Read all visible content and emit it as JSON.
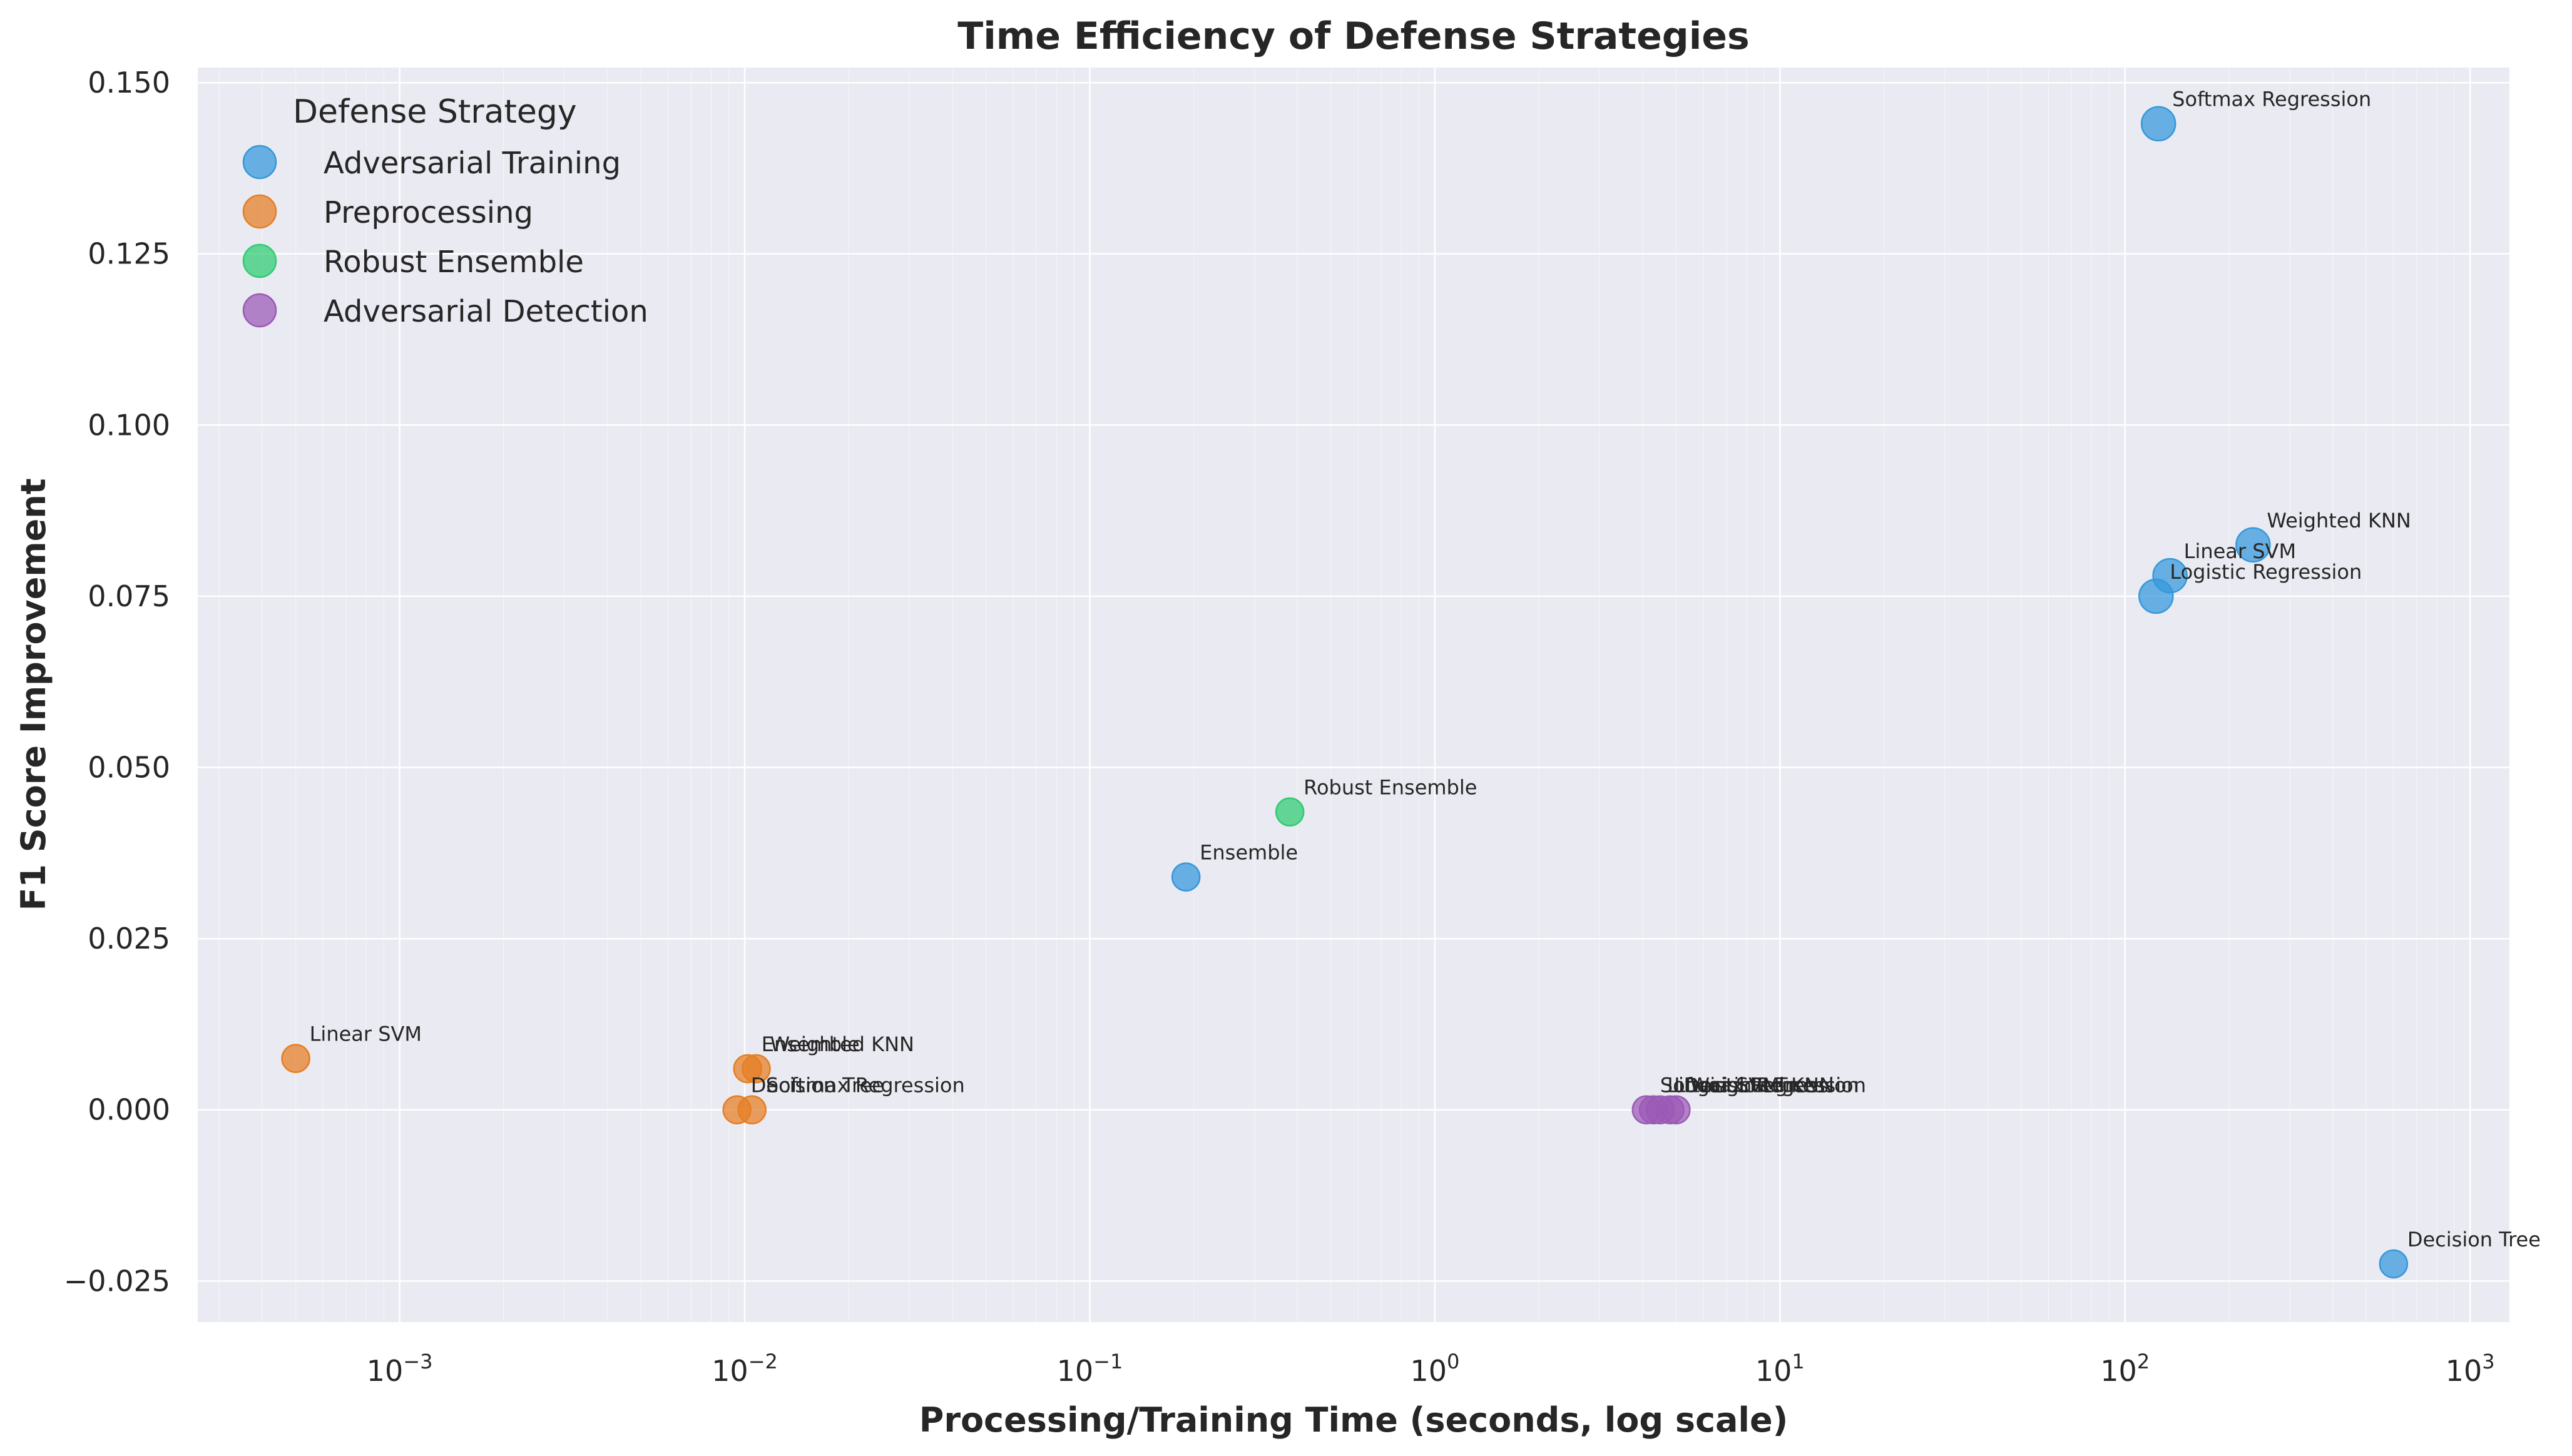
{
  "chart_data": {
    "type": "scatter",
    "title": "Time Efficiency of Defense Strategies",
    "xlabel": "Processing/Training Time (seconds, log scale)",
    "ylabel": "F1 Score Improvement",
    "x_scale": "log",
    "xlim": [
      0.00026,
      1300
    ],
    "ylim": [
      -0.031,
      0.1522
    ],
    "x_ticks": [
      {
        "value": 0.001,
        "base": "10",
        "exp": "−3"
      },
      {
        "value": 0.01,
        "base": "10",
        "exp": "−2"
      },
      {
        "value": 0.1,
        "base": "10",
        "exp": "−1"
      },
      {
        "value": 1,
        "base": "10",
        "exp": "0"
      },
      {
        "value": 10,
        "base": "10",
        "exp": "1"
      },
      {
        "value": 100,
        "base": "10",
        "exp": "2"
      },
      {
        "value": 1000,
        "base": "10",
        "exp": "3"
      }
    ],
    "y_ticks": [
      {
        "value": -0.025,
        "label": "−0.025"
      },
      {
        "value": 0.0,
        "label": "0.000"
      },
      {
        "value": 0.025,
        "label": "0.025"
      },
      {
        "value": 0.05,
        "label": "0.050"
      },
      {
        "value": 0.075,
        "label": "0.075"
      },
      {
        "value": 0.1,
        "label": "0.100"
      },
      {
        "value": 0.125,
        "label": "0.125"
      },
      {
        "value": 0.15,
        "label": "0.150"
      }
    ],
    "grid": true,
    "legend": {
      "title": "Defense Strategy",
      "placement": "top-left"
    },
    "series": [
      {
        "name": "Adversarial Training",
        "color": "#3498db",
        "points": [
          {
            "x": 125,
            "y": 0.144,
            "label": "Softmax Regression"
          },
          {
            "x": 235,
            "y": 0.0825,
            "label": "Weighted KNN"
          },
          {
            "x": 135,
            "y": 0.078,
            "label": "Linear SVM"
          },
          {
            "x": 123,
            "y": 0.075,
            "label": "Logistic Regression"
          },
          {
            "x": 0.19,
            "y": 0.034,
            "label": "Ensemble"
          },
          {
            "x": 600,
            "y": -0.0225,
            "label": "Decision Tree"
          }
        ]
      },
      {
        "name": "Preprocessing",
        "color": "#e67e22",
        "points": [
          {
            "x": 0.0005,
            "y": 0.0075,
            "label": "Linear SVM"
          },
          {
            "x": 0.0102,
            "y": 0.006,
            "label": "Ensemble"
          },
          {
            "x": 0.0108,
            "y": 0.006,
            "label": "Weighted KNN"
          },
          {
            "x": 0.0095,
            "y": 0.0,
            "label": "Decision Tree"
          },
          {
            "x": 0.0105,
            "y": 0.0,
            "label": "Softmax Regression"
          }
        ]
      },
      {
        "name": "Robust Ensemble",
        "color": "#2ecc71",
        "points": [
          {
            "x": 0.38,
            "y": 0.0435,
            "label": "Robust Ensemble"
          }
        ]
      },
      {
        "name": "Adversarial Detection",
        "color": "#9b59b6",
        "points": [
          {
            "x": 4.1,
            "y": 0.0,
            "label": "Softmax Regression"
          },
          {
            "x": 4.3,
            "y": 0.0,
            "label": "Linear SVM"
          },
          {
            "x": 4.5,
            "y": 0.0,
            "label": "Logistic Regression"
          },
          {
            "x": 4.8,
            "y": 0.0,
            "label": "Decision Tree"
          },
          {
            "x": 5.0,
            "y": 0.0,
            "label": "Weighted KNN"
          }
        ]
      }
    ]
  }
}
